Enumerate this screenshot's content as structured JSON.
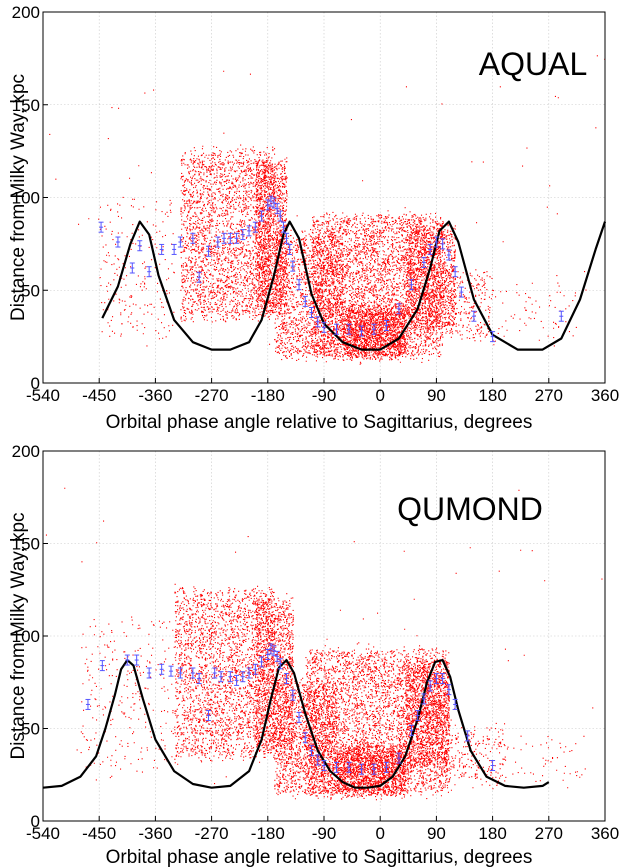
{
  "chart_data": [
    {
      "type": "scatter",
      "model_label": "AQUAL",
      "xlabel": "Orbital phase angle relative to Sagittarius, degrees",
      "ylabel": "Distance from Milky Way, kpc",
      "xlim": [
        -540,
        360
      ],
      "ylim": [
        0,
        200
      ],
      "xticks": [
        -540,
        -450,
        -360,
        -270,
        -180,
        -90,
        0,
        90,
        180,
        270,
        360
      ],
      "yticks": [
        0,
        50,
        100,
        150,
        200
      ],
      "grid": true,
      "colors": {
        "particles": "#ff0000",
        "observations": "#5555ff",
        "orbit": "#000000"
      },
      "series": [
        {
          "kind": "orbit-curve",
          "x": [
            -445,
            -420,
            -400,
            -385,
            -370,
            -355,
            -330,
            -300,
            -270,
            -240,
            -210,
            -190,
            -170,
            -155,
            -145,
            -130,
            -110,
            -90,
            -60,
            -30,
            0,
            30,
            60,
            80,
            95,
            110,
            125,
            150,
            180,
            220,
            260,
            290,
            320,
            345,
            360
          ],
          "y": [
            35,
            52,
            75,
            87,
            80,
            58,
            34,
            22,
            18,
            18,
            22,
            34,
            58,
            80,
            87,
            78,
            48,
            32,
            22,
            18,
            18,
            24,
            40,
            62,
            82,
            87,
            76,
            45,
            26,
            18,
            18,
            24,
            45,
            72,
            87
          ]
        },
        {
          "kind": "observations",
          "x": [
            -447,
            -420,
            -397,
            -385,
            -370,
            -350,
            -330,
            -320,
            -300,
            -290,
            -275,
            -260,
            -250,
            -240,
            -230,
            -220,
            -210,
            -200,
            -190,
            -180,
            -175,
            -170,
            -165,
            -160,
            -155,
            -150,
            -145,
            -140,
            -130,
            -120,
            -110,
            -100,
            -90,
            -70,
            -50,
            -30,
            -10,
            10,
            30,
            50,
            70,
            80,
            90,
            100,
            110,
            120,
            130,
            150,
            180,
            290
          ],
          "y": [
            84,
            76,
            62,
            74,
            60,
            72,
            72,
            76,
            78,
            57,
            71,
            76,
            78,
            78,
            78,
            80,
            82,
            84,
            90,
            96,
            98,
            97,
            94,
            90,
            84,
            78,
            72,
            63,
            53,
            44,
            38,
            33,
            30,
            29,
            29,
            28,
            29,
            31,
            40,
            53,
            65,
            72,
            76,
            75,
            69,
            60,
            49,
            36,
            25,
            36
          ]
        }
      ]
    },
    {
      "type": "scatter",
      "model_label": "QUMOND",
      "xlabel": "Orbital phase angle relative to Sagittarius, degrees",
      "ylabel": "Distance from Milky Way, kpc",
      "xlim": [
        -540,
        360
      ],
      "ylim": [
        0,
        200
      ],
      "xticks": [
        -540,
        -450,
        -360,
        -270,
        -180,
        -90,
        0,
        90,
        180,
        270,
        360
      ],
      "yticks": [
        0,
        50,
        100,
        150,
        200
      ],
      "grid": true,
      "colors": {
        "particles": "#ff0000",
        "observations": "#5555ff",
        "orbit": "#000000"
      },
      "series": [
        {
          "kind": "orbit-curve",
          "x": [
            -540,
            -510,
            -480,
            -455,
            -440,
            -425,
            -415,
            -405,
            -395,
            -380,
            -360,
            -330,
            -300,
            -270,
            -240,
            -210,
            -190,
            -175,
            -162,
            -150,
            -138,
            -120,
            -100,
            -80,
            -60,
            -40,
            -20,
            0,
            20,
            40,
            60,
            75,
            88,
            100,
            112,
            125,
            145,
            170,
            200,
            230,
            260,
            270
          ],
          "y": [
            18,
            19,
            24,
            35,
            50,
            68,
            82,
            87,
            84,
            66,
            44,
            27,
            20,
            18,
            19,
            27,
            44,
            66,
            83,
            87,
            80,
            58,
            38,
            27,
            21,
            18,
            18,
            19,
            24,
            35,
            55,
            75,
            86,
            87,
            78,
            60,
            38,
            24,
            19,
            18,
            19,
            21
          ]
        },
        {
          "kind": "observations",
          "x": [
            -468,
            -445,
            -405,
            -390,
            -370,
            -350,
            -335,
            -320,
            -300,
            -290,
            -275,
            -265,
            -255,
            -240,
            -230,
            -220,
            -210,
            -200,
            -190,
            -180,
            -175,
            -170,
            -165,
            -160,
            -150,
            -140,
            -130,
            -120,
            -110,
            -100,
            -90,
            -70,
            -50,
            -30,
            -10,
            10,
            30,
            50,
            60,
            70,
            80,
            90,
            100,
            110,
            120,
            140,
            180
          ],
          "y": [
            63,
            84,
            87,
            87,
            80,
            82,
            81,
            80,
            80,
            77,
            57,
            80,
            78,
            78,
            76,
            78,
            80,
            82,
            86,
            90,
            93,
            92,
            89,
            85,
            77,
            68,
            56,
            45,
            38,
            33,
            30,
            29,
            29,
            28,
            28,
            29,
            34,
            49,
            57,
            66,
            73,
            77,
            77,
            71,
            63,
            46,
            30
          ]
        }
      ]
    }
  ]
}
